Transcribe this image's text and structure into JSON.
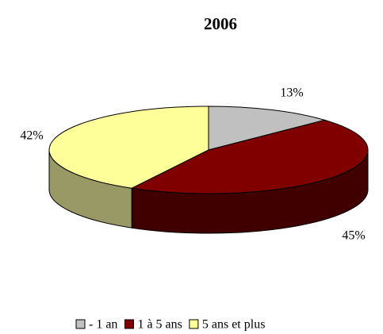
{
  "chart_data": {
    "type": "pie3d",
    "title": "2006",
    "categories": [
      "- 1 an",
      "1 à 5 ans",
      "5 ans et plus"
    ],
    "values": [
      13,
      45,
      42
    ],
    "value_labels": [
      "13%",
      "45%",
      "42%"
    ],
    "colors": [
      "#c0c0c0",
      "#800000",
      "#ffff99"
    ],
    "legend": "bottom"
  }
}
